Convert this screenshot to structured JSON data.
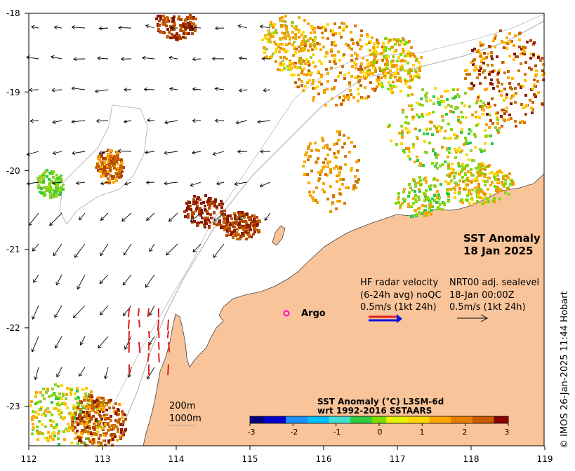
{
  "map": {
    "title_line1": "SST Anomaly",
    "title_line2": "18 Jan 2025",
    "lon_ticks": [
      "112",
      "113",
      "114",
      "115",
      "116",
      "117",
      "118",
      "119"
    ],
    "lat_ticks": [
      "-18",
      "-19",
      "-20",
      "-21",
      "-22",
      "-23"
    ],
    "lon_range": [
      112,
      119
    ],
    "lat_range": [
      -23.5,
      -18
    ],
    "land_color": "#f9c49a",
    "coast_color": "#555555",
    "bathymetry_color": "#aaaaaa"
  },
  "legend_hf": {
    "line1": "HF radar velocity",
    "line2": "(6-24h avg) noQC",
    "line3": "0.5m/s (1kt 24h)",
    "arrow_colors": [
      "#e02020",
      "#1010e0"
    ]
  },
  "legend_sealevel": {
    "line1": "NRT00 adj. sealevel",
    "line2": "18-Jan 00:00Z",
    "line3": "0.5m/s (1kt 24h)"
  },
  "argo": {
    "label": "Argo",
    "marker_color": "#ff00cc",
    "lon": 115.48,
    "lat": -21.82
  },
  "depth_labels": {
    "shallow": "200m",
    "deep": "1000m"
  },
  "colorbar": {
    "title_line1": "SST Anomaly (°C) L3SM-6d",
    "title_line2": "wrt 1992-2016 SSTAARS",
    "ticks": [
      "-3",
      "-2",
      "-1",
      "0",
      "1",
      "2",
      "3"
    ],
    "range": [
      -3,
      3
    ],
    "colors": [
      "#000080",
      "#0000cd",
      "#1e90ff",
      "#00bfff",
      "#40e0d0",
      "#2ecc40",
      "#7fdc00",
      "#e6f000",
      "#ffd700",
      "#ffa500",
      "#e67e00",
      "#c85a00",
      "#8b0000"
    ]
  },
  "credit": "© IMOS 26-Jan-2025 11:44 Hobart"
}
